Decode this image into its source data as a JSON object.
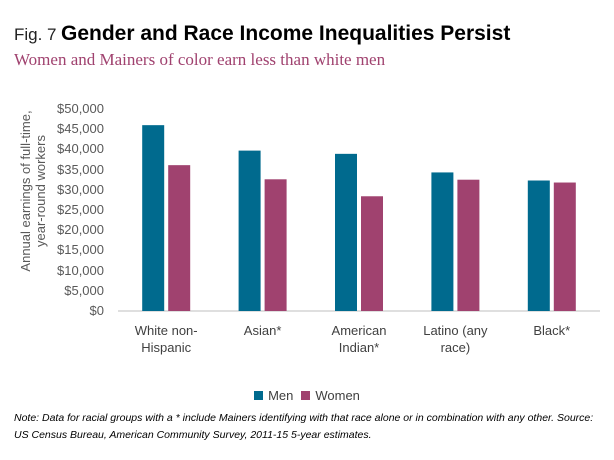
{
  "chart_data": {
    "type": "bar",
    "figure_label": "Fig. 7",
    "title": "Gender and Race Income Inequalities Persist",
    "subtitle": "Women and Mainers of color earn less than white men",
    "y_label": "Annual earnings of full-time, year-round workers",
    "categories": [
      "White non-Hispanic",
      "Asian*",
      "American Indian*",
      "Latino (any race)",
      "Black*"
    ],
    "series": [
      {
        "name": "Men",
        "color": "#006a8e",
        "values": [
          46000,
          39700,
          38900,
          34300,
          32300
        ]
      },
      {
        "name": "Women",
        "color": "#a0426f",
        "values": [
          36100,
          32600,
          28400,
          32500,
          31800
        ]
      }
    ],
    "ylim": [
      0,
      50000
    ],
    "yticks": [
      {
        "value": 0,
        "label": "$0"
      },
      {
        "value": 5000,
        "label": "$5,000"
      },
      {
        "value": 10000,
        "label": "$10,000"
      },
      {
        "value": 15000,
        "label": "$15,000"
      },
      {
        "value": 20000,
        "label": "$20,000"
      },
      {
        "value": 25000,
        "label": "$25,000"
      },
      {
        "value": 30000,
        "label": "$30,000"
      },
      {
        "value": 35000,
        "label": "$35,000"
      },
      {
        "value": 40000,
        "label": "$40,000"
      },
      {
        "value": 45000,
        "label": "$45,000"
      },
      {
        "value": 50000,
        "label": "$50,000"
      }
    ],
    "grid": false,
    "legend": "bottom",
    "note": "Note: Data for racial groups with a * include Mainers identifying with that race alone or in combination with any other.  Source: US Census Bureau, American Community Survey, 2011-15 5-year estimates."
  }
}
